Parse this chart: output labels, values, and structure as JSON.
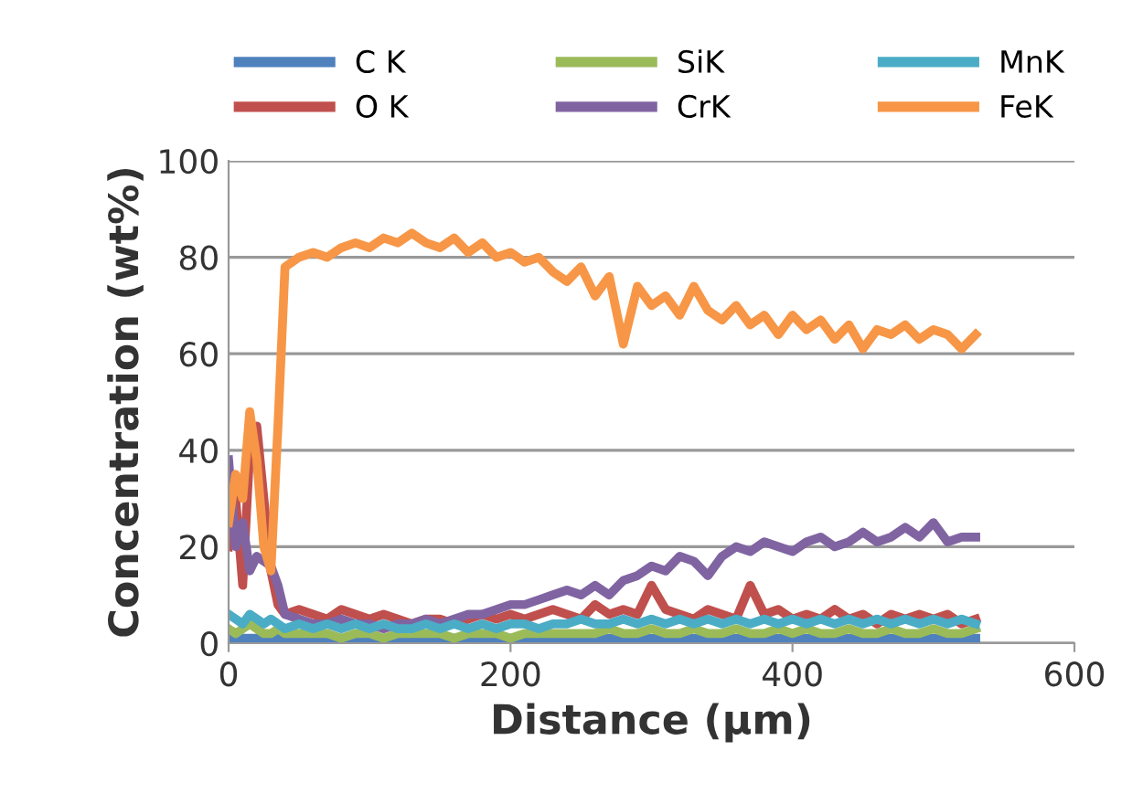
{
  "chart_data": {
    "type": "line",
    "xlabel": "Distance (µm)",
    "ylabel": "Concentration (wt%)",
    "xlim": [
      0,
      600
    ],
    "xticks": [
      0,
      200,
      400,
      600
    ],
    "ylim": [
      0,
      100
    ],
    "yticks": [
      0,
      20,
      40,
      60,
      80,
      100
    ],
    "grid": "y",
    "legend": "top",
    "marker": "none",
    "line_style": "solid",
    "x": [
      0,
      5,
      10,
      15,
      20,
      25,
      30,
      35,
      40,
      50,
      60,
      70,
      80,
      90,
      100,
      110,
      120,
      130,
      140,
      150,
      160,
      170,
      180,
      190,
      200,
      210,
      220,
      230,
      240,
      250,
      260,
      270,
      280,
      290,
      300,
      310,
      320,
      330,
      340,
      350,
      360,
      370,
      380,
      390,
      400,
      410,
      420,
      430,
      440,
      450,
      460,
      470,
      480,
      490,
      500,
      510,
      520,
      530
    ],
    "series": [
      {
        "name": "C K",
        "color": "#4f81bd",
        "values": [
          1,
          1,
          1,
          1,
          1,
          1,
          1,
          1,
          1,
          1,
          1,
          1,
          1,
          1,
          1,
          1,
          1,
          1,
          1,
          1,
          1,
          1,
          1,
          1,
          1,
          1,
          1,
          1,
          1,
          1,
          1,
          1,
          1,
          1,
          1,
          1,
          1,
          1,
          1,
          1,
          1,
          1,
          1,
          1,
          1,
          1,
          1,
          1,
          1,
          1,
          1,
          1,
          1,
          1,
          1,
          1,
          1,
          1
        ]
      },
      {
        "name": "O K",
        "color": "#c0504d",
        "values": [
          20,
          30,
          12,
          40,
          45,
          30,
          15,
          8,
          6,
          7,
          6,
          5,
          7,
          6,
          5,
          6,
          5,
          4,
          5,
          5,
          4,
          5,
          6,
          5,
          6,
          5,
          6,
          7,
          6,
          5,
          8,
          6,
          7,
          6,
          12,
          7,
          6,
          5,
          7,
          6,
          5,
          12,
          6,
          7,
          5,
          6,
          5,
          7,
          5,
          6,
          4,
          6,
          5,
          6,
          5,
          6,
          4,
          5
        ]
      },
      {
        "name": "SiK",
        "color": "#9bbb59",
        "values": [
          3,
          2,
          3,
          4,
          3,
          2,
          2,
          3,
          2,
          2,
          2,
          2,
          1,
          2,
          2,
          1,
          2,
          2,
          2,
          2,
          1,
          2,
          2,
          2,
          1,
          2,
          2,
          2,
          2,
          2,
          2,
          3,
          2,
          2,
          3,
          2,
          2,
          3,
          2,
          2,
          3,
          2,
          2,
          3,
          2,
          3,
          2,
          2,
          3,
          2,
          2,
          3,
          2,
          2,
          3,
          2,
          2,
          3
        ]
      },
      {
        "name": "CrK",
        "color": "#8064a2",
        "values": [
          38,
          20,
          25,
          15,
          18,
          17,
          16,
          12,
          6,
          5,
          4,
          4,
          5,
          4,
          4,
          3,
          4,
          4,
          5,
          4,
          5,
          6,
          6,
          7,
          8,
          8,
          9,
          10,
          11,
          10,
          12,
          10,
          13,
          14,
          16,
          15,
          18,
          17,
          14,
          18,
          20,
          19,
          21,
          20,
          19,
          21,
          22,
          20,
          21,
          23,
          21,
          22,
          24,
          22,
          25,
          21,
          22,
          22
        ]
      },
      {
        "name": "MnK",
        "color": "#4bacc6",
        "values": [
          6,
          5,
          4,
          6,
          5,
          4,
          5,
          4,
          3,
          4,
          3,
          4,
          3,
          4,
          3,
          4,
          3,
          3,
          4,
          3,
          4,
          3,
          4,
          3,
          4,
          4,
          3,
          4,
          4,
          5,
          4,
          4,
          5,
          4,
          5,
          4,
          5,
          4,
          5,
          4,
          5,
          4,
          5,
          4,
          5,
          4,
          5,
          4,
          5,
          4,
          5,
          4,
          5,
          4,
          5,
          4,
          5,
          4
        ]
      },
      {
        "name": "FeK",
        "color": "#f79646",
        "values": [
          25,
          35,
          30,
          48,
          38,
          20,
          15,
          45,
          78,
          80,
          81,
          80,
          82,
          83,
          82,
          84,
          83,
          85,
          83,
          82,
          84,
          81,
          83,
          80,
          81,
          79,
          80,
          77,
          75,
          78,
          72,
          76,
          62,
          74,
          70,
          72,
          68,
          74,
          69,
          67,
          70,
          66,
          68,
          64,
          68,
          65,
          67,
          63,
          66,
          61,
          65,
          64,
          66,
          63,
          65,
          64,
          61,
          64
        ]
      }
    ]
  }
}
